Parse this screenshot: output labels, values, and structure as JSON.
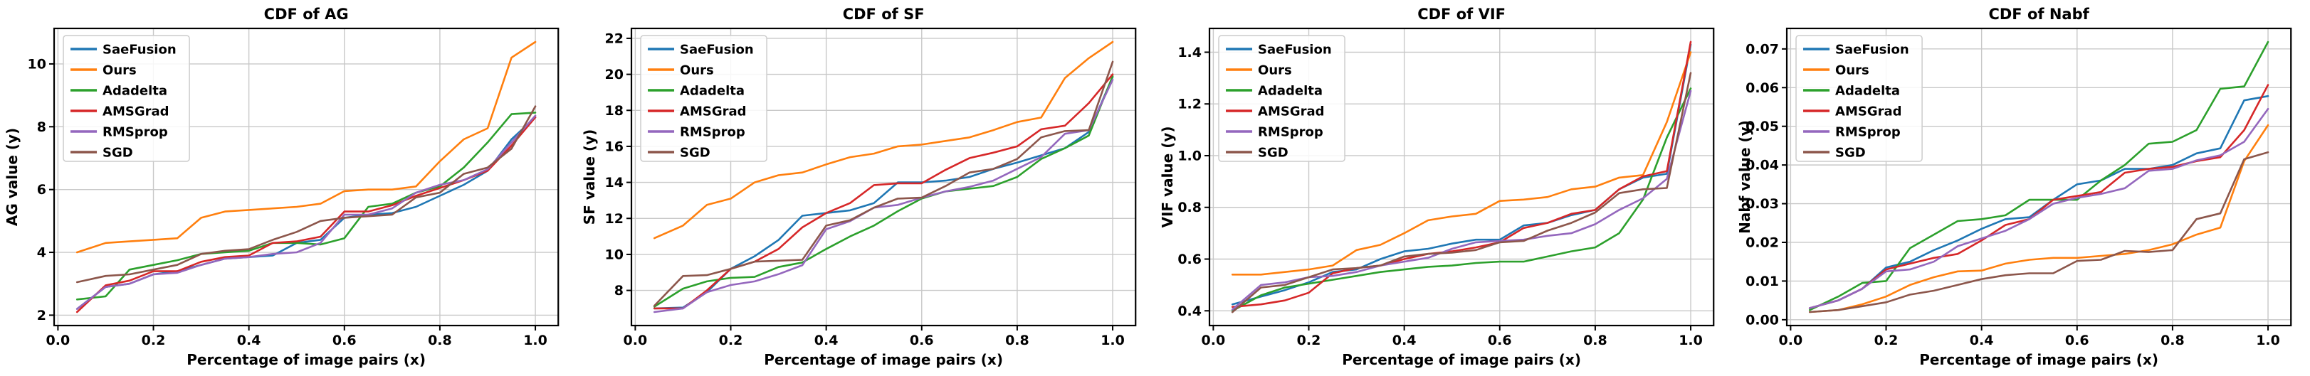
{
  "figure": {
    "background": "#ffffff",
    "series_names": [
      "SaeFusion",
      "Ours",
      "Adadelta",
      "AMSGrad",
      "RMSprop",
      "SGD"
    ],
    "series_colors": {
      "SaeFusion": "#1f77b4",
      "Ours": "#ff7f0e",
      "Adadelta": "#2ca02c",
      "AMSGrad": "#d62728",
      "RMSprop": "#9467bd",
      "SGD": "#8c564b"
    }
  },
  "chart_data": [
    {
      "type": "line",
      "title": "CDF of AG",
      "xlabel": "Percentage of image pairs (x)",
      "ylabel": "AG value (y)",
      "legend_position": "upper left",
      "grid": true,
      "x": [
        0.04,
        0.1,
        0.15,
        0.2,
        0.25,
        0.3,
        0.35,
        0.4,
        0.45,
        0.5,
        0.55,
        0.6,
        0.65,
        0.7,
        0.75,
        0.8,
        0.85,
        0.9,
        0.95,
        1.0
      ],
      "xlim": [
        -0.008,
        1.048
      ],
      "ylim": [
        1.67,
        11.13
      ],
      "xticks": [
        0.0,
        0.2,
        0.4,
        0.6,
        0.8,
        1.0
      ],
      "yticks": [
        2,
        4,
        6,
        8,
        10
      ],
      "xtick_decimals": 1,
      "ytick_decimals": 0,
      "series": [
        {
          "name": "SaeFusion",
          "values": [
            2.2,
            2.9,
            3.0,
            3.3,
            3.4,
            3.6,
            3.8,
            3.85,
            3.9,
            4.3,
            4.4,
            5.1,
            5.2,
            5.25,
            5.45,
            5.8,
            6.15,
            6.6,
            7.6,
            8.3
          ]
        },
        {
          "name": "Ours",
          "values": [
            4.0,
            4.3,
            4.35,
            4.4,
            4.45,
            5.1,
            5.3,
            5.35,
            5.4,
            5.45,
            5.55,
            5.95,
            6.0,
            6.0,
            6.1,
            6.9,
            7.6,
            7.95,
            10.2,
            10.7
          ]
        },
        {
          "name": "Adadelta",
          "values": [
            2.5,
            2.6,
            3.45,
            3.6,
            3.75,
            3.95,
            4.0,
            4.05,
            4.3,
            4.3,
            4.25,
            4.45,
            5.45,
            5.55,
            5.9,
            6.1,
            6.7,
            7.5,
            8.4,
            8.45
          ]
        },
        {
          "name": "AMSGrad",
          "values": [
            2.1,
            2.95,
            3.1,
            3.4,
            3.4,
            3.7,
            3.85,
            3.9,
            4.3,
            4.35,
            4.5,
            5.3,
            5.3,
            5.5,
            5.8,
            6.05,
            6.3,
            6.6,
            7.4,
            8.3
          ]
        },
        {
          "name": "RMSprop",
          "values": [
            2.2,
            2.9,
            3.0,
            3.3,
            3.35,
            3.6,
            3.8,
            3.85,
            3.95,
            4.0,
            4.3,
            5.2,
            5.2,
            5.4,
            5.9,
            6.15,
            6.3,
            6.65,
            7.5,
            8.35
          ]
        },
        {
          "name": "SGD",
          "values": [
            3.05,
            3.25,
            3.3,
            3.45,
            3.6,
            3.95,
            4.05,
            4.1,
            4.4,
            4.65,
            5.0,
            5.1,
            5.15,
            5.2,
            5.75,
            5.9,
            6.5,
            6.7,
            7.3,
            8.65
          ]
        }
      ]
    },
    {
      "type": "line",
      "title": "CDF of SF",
      "xlabel": "Percentage of image pairs (x)",
      "ylabel": "SF value (y)",
      "legend_position": "upper left",
      "grid": true,
      "x": [
        0.04,
        0.1,
        0.15,
        0.2,
        0.25,
        0.3,
        0.35,
        0.4,
        0.45,
        0.5,
        0.55,
        0.6,
        0.65,
        0.7,
        0.75,
        0.8,
        0.85,
        0.9,
        0.95,
        1.0
      ],
      "xlim": [
        -0.008,
        1.048
      ],
      "ylim": [
        6.05,
        22.55
      ],
      "xticks": [
        0.0,
        0.2,
        0.4,
        0.6,
        0.8,
        1.0
      ],
      "yticks": [
        8,
        10,
        12,
        14,
        16,
        18,
        20,
        22
      ],
      "xtick_decimals": 1,
      "ytick_decimals": 0,
      "series": [
        {
          "name": "SaeFusion",
          "values": [
            7.0,
            7.05,
            7.9,
            9.2,
            9.9,
            10.8,
            12.15,
            12.3,
            12.45,
            12.85,
            14.0,
            14.0,
            14.1,
            14.3,
            14.75,
            15.1,
            15.5,
            15.9,
            16.8,
            19.85
          ]
        },
        {
          "name": "Ours",
          "values": [
            10.9,
            11.6,
            12.75,
            13.1,
            14.0,
            14.4,
            14.55,
            15.0,
            15.4,
            15.6,
            16.0,
            16.1,
            16.3,
            16.5,
            16.9,
            17.35,
            17.6,
            19.8,
            20.9,
            21.8
          ]
        },
        {
          "name": "Adadelta",
          "values": [
            7.1,
            8.1,
            8.5,
            8.7,
            8.75,
            9.3,
            9.55,
            10.3,
            11.0,
            11.6,
            12.4,
            13.1,
            13.5,
            13.65,
            13.8,
            14.3,
            15.3,
            15.9,
            16.6,
            19.9
          ]
        },
        {
          "name": "AMSGrad",
          "values": [
            7.0,
            7.0,
            8.0,
            9.2,
            9.6,
            10.3,
            11.5,
            12.3,
            12.85,
            13.85,
            13.95,
            13.95,
            14.7,
            15.35,
            15.65,
            16.0,
            16.95,
            17.15,
            18.4,
            20.0
          ]
        },
        {
          "name": "RMSprop",
          "values": [
            6.8,
            7.0,
            7.9,
            8.3,
            8.5,
            8.9,
            9.4,
            11.4,
            11.85,
            12.6,
            12.75,
            13.15,
            13.5,
            13.75,
            14.1,
            14.75,
            15.4,
            16.7,
            16.9,
            19.7
          ]
        },
        {
          "name": "SGD",
          "values": [
            7.15,
            8.8,
            8.85,
            9.2,
            9.6,
            9.65,
            9.7,
            11.6,
            11.9,
            12.6,
            13.1,
            13.15,
            13.8,
            14.55,
            14.75,
            15.3,
            16.5,
            16.85,
            16.9,
            20.7
          ]
        }
      ]
    },
    {
      "type": "line",
      "title": "CDF of VIF",
      "xlabel": "Percentage of image pairs (x)",
      "ylabel": "VIF value (y)",
      "legend_position": "upper left",
      "grid": true,
      "x": [
        0.04,
        0.1,
        0.15,
        0.2,
        0.25,
        0.3,
        0.35,
        0.4,
        0.45,
        0.5,
        0.55,
        0.6,
        0.65,
        0.7,
        0.75,
        0.8,
        0.85,
        0.9,
        0.95,
        1.0
      ],
      "xlim": [
        -0.008,
        1.048
      ],
      "ylim": [
        0.343,
        1.492
      ],
      "xticks": [
        0.0,
        0.2,
        0.4,
        0.6,
        0.8,
        1.0
      ],
      "yticks": [
        0.4,
        0.6,
        0.8,
        1.0,
        1.2,
        1.4
      ],
      "xtick_decimals": 1,
      "ytick_decimals": 1,
      "series": [
        {
          "name": "SaeFusion",
          "values": [
            0.425,
            0.455,
            0.48,
            0.51,
            0.55,
            0.56,
            0.6,
            0.63,
            0.64,
            0.66,
            0.675,
            0.675,
            0.73,
            0.74,
            0.77,
            0.79,
            0.87,
            0.915,
            0.93,
            1.43
          ]
        },
        {
          "name": "Ours",
          "values": [
            0.54,
            0.54,
            0.55,
            0.56,
            0.575,
            0.635,
            0.655,
            0.7,
            0.75,
            0.765,
            0.775,
            0.825,
            0.83,
            0.84,
            0.87,
            0.88,
            0.915,
            0.925,
            1.13,
            1.4
          ]
        },
        {
          "name": "Adadelta",
          "values": [
            0.4,
            0.46,
            0.49,
            0.505,
            0.52,
            0.535,
            0.55,
            0.56,
            0.57,
            0.575,
            0.585,
            0.59,
            0.59,
            0.61,
            0.63,
            0.645,
            0.7,
            0.83,
            1.07,
            1.26
          ]
        },
        {
          "name": "AMSGrad",
          "values": [
            0.415,
            0.425,
            0.44,
            0.47,
            0.545,
            0.565,
            0.575,
            0.6,
            0.62,
            0.63,
            0.645,
            0.665,
            0.72,
            0.74,
            0.775,
            0.79,
            0.87,
            0.92,
            0.94,
            1.44
          ]
        },
        {
          "name": "RMSprop",
          "values": [
            0.405,
            0.5,
            0.51,
            0.53,
            0.535,
            0.55,
            0.575,
            0.59,
            0.605,
            0.64,
            0.665,
            0.67,
            0.675,
            0.69,
            0.7,
            0.735,
            0.79,
            0.835,
            0.91,
            1.25
          ]
        },
        {
          "name": "SGD",
          "values": [
            0.395,
            0.49,
            0.5,
            0.53,
            0.56,
            0.565,
            0.575,
            0.61,
            0.62,
            0.625,
            0.635,
            0.665,
            0.67,
            0.71,
            0.74,
            0.78,
            0.855,
            0.87,
            0.875,
            1.32
          ]
        }
      ]
    },
    {
      "type": "line",
      "title": "CDF of Nabf",
      "xlabel": "Percentage of image pairs (x)",
      "ylabel": "Nabf value (y)",
      "legend_position": "upper left",
      "grid": true,
      "x": [
        0.04,
        0.1,
        0.15,
        0.2,
        0.25,
        0.3,
        0.35,
        0.4,
        0.45,
        0.5,
        0.55,
        0.6,
        0.65,
        0.7,
        0.75,
        0.8,
        0.85,
        0.9,
        0.95,
        1.0
      ],
      "xlim": [
        -0.008,
        1.048
      ],
      "ylim": [
        -0.0015,
        0.0753
      ],
      "xticks": [
        0.0,
        0.2,
        0.4,
        0.6,
        0.8,
        1.0
      ],
      "yticks": [
        0.0,
        0.01,
        0.02,
        0.03,
        0.04,
        0.05,
        0.06,
        0.07
      ],
      "xtick_decimals": 1,
      "ytick_decimals": 2,
      "series": [
        {
          "name": "SaeFusion",
          "values": [
            0.003,
            0.005,
            0.008,
            0.0135,
            0.015,
            0.018,
            0.0205,
            0.0235,
            0.026,
            0.0265,
            0.031,
            0.035,
            0.036,
            0.039,
            0.039,
            0.04,
            0.043,
            0.0443,
            0.0567,
            0.0578
          ]
        },
        {
          "name": "Ours",
          "values": [
            0.002,
            0.0025,
            0.004,
            0.006,
            0.009,
            0.011,
            0.0125,
            0.0127,
            0.0145,
            0.0155,
            0.016,
            0.016,
            0.0165,
            0.017,
            0.018,
            0.0195,
            0.022,
            0.0238,
            0.041,
            0.0503
          ]
        },
        {
          "name": "Adadelta",
          "values": [
            0.0025,
            0.006,
            0.0095,
            0.01,
            0.0185,
            0.022,
            0.0255,
            0.026,
            0.027,
            0.031,
            0.031,
            0.031,
            0.036,
            0.04,
            0.0455,
            0.046,
            0.049,
            0.0597,
            0.0603,
            0.0718
          ]
        },
        {
          "name": "AMSGrad",
          "values": [
            0.003,
            0.005,
            0.008,
            0.013,
            0.0145,
            0.016,
            0.017,
            0.0205,
            0.0245,
            0.026,
            0.031,
            0.032,
            0.033,
            0.038,
            0.039,
            0.0395,
            0.041,
            0.042,
            0.049,
            0.0607
          ]
        },
        {
          "name": "RMSprop",
          "values": [
            0.003,
            0.005,
            0.008,
            0.0125,
            0.013,
            0.015,
            0.019,
            0.021,
            0.023,
            0.026,
            0.03,
            0.0315,
            0.0325,
            0.034,
            0.0385,
            0.039,
            0.0412,
            0.0425,
            0.046,
            0.0545
          ]
        },
        {
          "name": "SGD",
          "values": [
            0.002,
            0.0025,
            0.0035,
            0.0045,
            0.0065,
            0.0075,
            0.009,
            0.0105,
            0.0115,
            0.012,
            0.012,
            0.0152,
            0.0155,
            0.0178,
            0.0175,
            0.018,
            0.026,
            0.0275,
            0.0415,
            0.0433
          ]
        }
      ]
    }
  ]
}
